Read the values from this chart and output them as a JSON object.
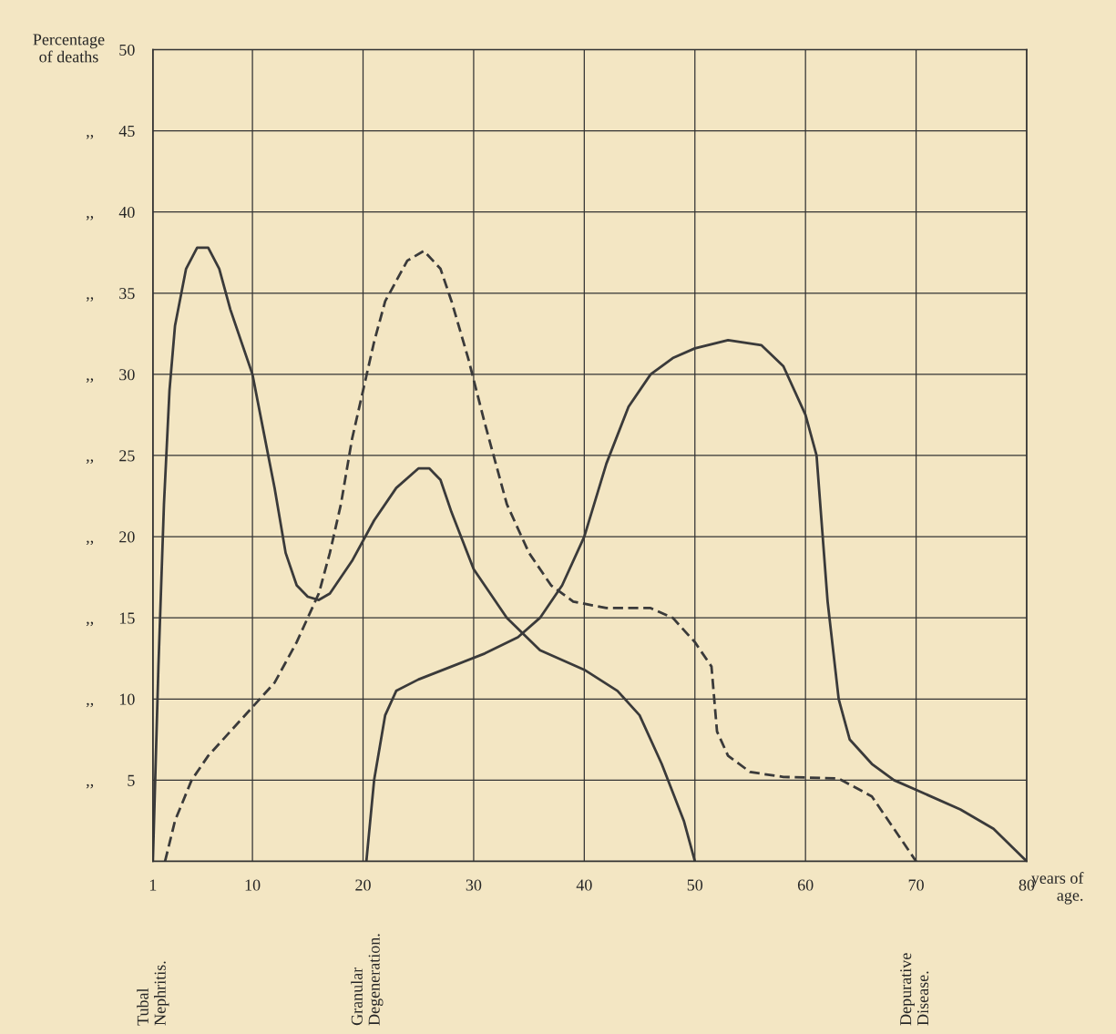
{
  "chart_data": {
    "type": "line",
    "ylabel": "Percentage\nof deaths",
    "xlabel": "years of\nage.",
    "xlim": [
      1,
      80
    ],
    "xticks": [
      1,
      10,
      20,
      30,
      40,
      50,
      60,
      70,
      80
    ],
    "ylim": [
      0,
      50
    ],
    "yticks": [
      {
        "value": 5,
        "label": ",,        5"
      },
      {
        "value": 10,
        "label": ",,      10"
      },
      {
        "value": 15,
        "label": ",,      15"
      },
      {
        "value": 20,
        "label": ",,      20"
      },
      {
        "value": 25,
        "label": ",,      25"
      },
      {
        "value": 30,
        "label": ",,      30"
      },
      {
        "value": 35,
        "label": ",,      35"
      },
      {
        "value": 40,
        "label": ",,      40"
      },
      {
        "value": 45,
        "label": ",,      45"
      },
      50
    ],
    "grid": true,
    "series": [
      {
        "color": "#3a3a3a",
        "line_style": "solid",
        "x": [
          1,
          1.5,
          2,
          2.5,
          3,
          4,
          5,
          6,
          7,
          8,
          10,
          12,
          13,
          14,
          15,
          16,
          17,
          19,
          21,
          23,
          25,
          26,
          27,
          28,
          30,
          33,
          36,
          40,
          43,
          45,
          47,
          49,
          50
        ],
        "values": [
          0,
          12,
          22,
          29,
          33,
          36.5,
          37.8,
          37.8,
          36.5,
          34,
          30,
          23,
          19,
          17,
          16.3,
          16.1,
          16.5,
          18.5,
          21,
          23,
          24.2,
          24.2,
          23.5,
          21.5,
          18,
          15,
          13,
          11.8,
          10.5,
          9,
          6,
          2.5,
          0
        ]
      },
      {
        "color": "#3a3a3a",
        "line_style": "solid",
        "x": [
          20.3,
          21,
          22,
          23,
          25,
          28,
          31,
          34,
          36,
          38,
          40,
          42,
          44,
          46,
          48,
          50,
          53,
          56,
          58,
          60,
          61,
          62,
          63,
          64,
          66,
          68,
          70,
          74,
          77,
          80
        ],
        "values": [
          0,
          5,
          9,
          10.5,
          11.2,
          12,
          12.8,
          13.8,
          15,
          17,
          20,
          24.5,
          28,
          30,
          31,
          31.6,
          32.1,
          31.8,
          30.5,
          27.5,
          25,
          16,
          10,
          7.5,
          6,
          5,
          4.4,
          3.2,
          2,
          0
        ]
      },
      {
        "color": "#3a3a3a",
        "line_style": "dashed",
        "x": [
          2.1,
          3,
          4.5,
          6,
          8,
          10,
          12,
          14,
          16,
          17,
          18,
          19,
          20,
          21,
          22,
          24,
          25.5,
          27,
          28,
          29.5,
          31,
          33,
          35,
          37,
          39,
          42,
          46,
          48,
          50,
          51.5,
          52,
          53,
          55,
          58,
          63,
          66,
          68,
          70
        ],
        "values": [
          0,
          2.5,
          5,
          6.5,
          8,
          9.5,
          11,
          13.5,
          16.5,
          19,
          22,
          26,
          29,
          32,
          34.5,
          37,
          37.6,
          36.5,
          34.5,
          31,
          27,
          22,
          19,
          17,
          16,
          15.6,
          15.6,
          15,
          13.5,
          12,
          8,
          6.5,
          5.5,
          5.2,
          5.1,
          4,
          2,
          0
        ]
      }
    ],
    "annotations": [
      "Tubal\nNephritis.",
      "Granular\nDegeneration.",
      "Depurative\nDisease."
    ]
  }
}
